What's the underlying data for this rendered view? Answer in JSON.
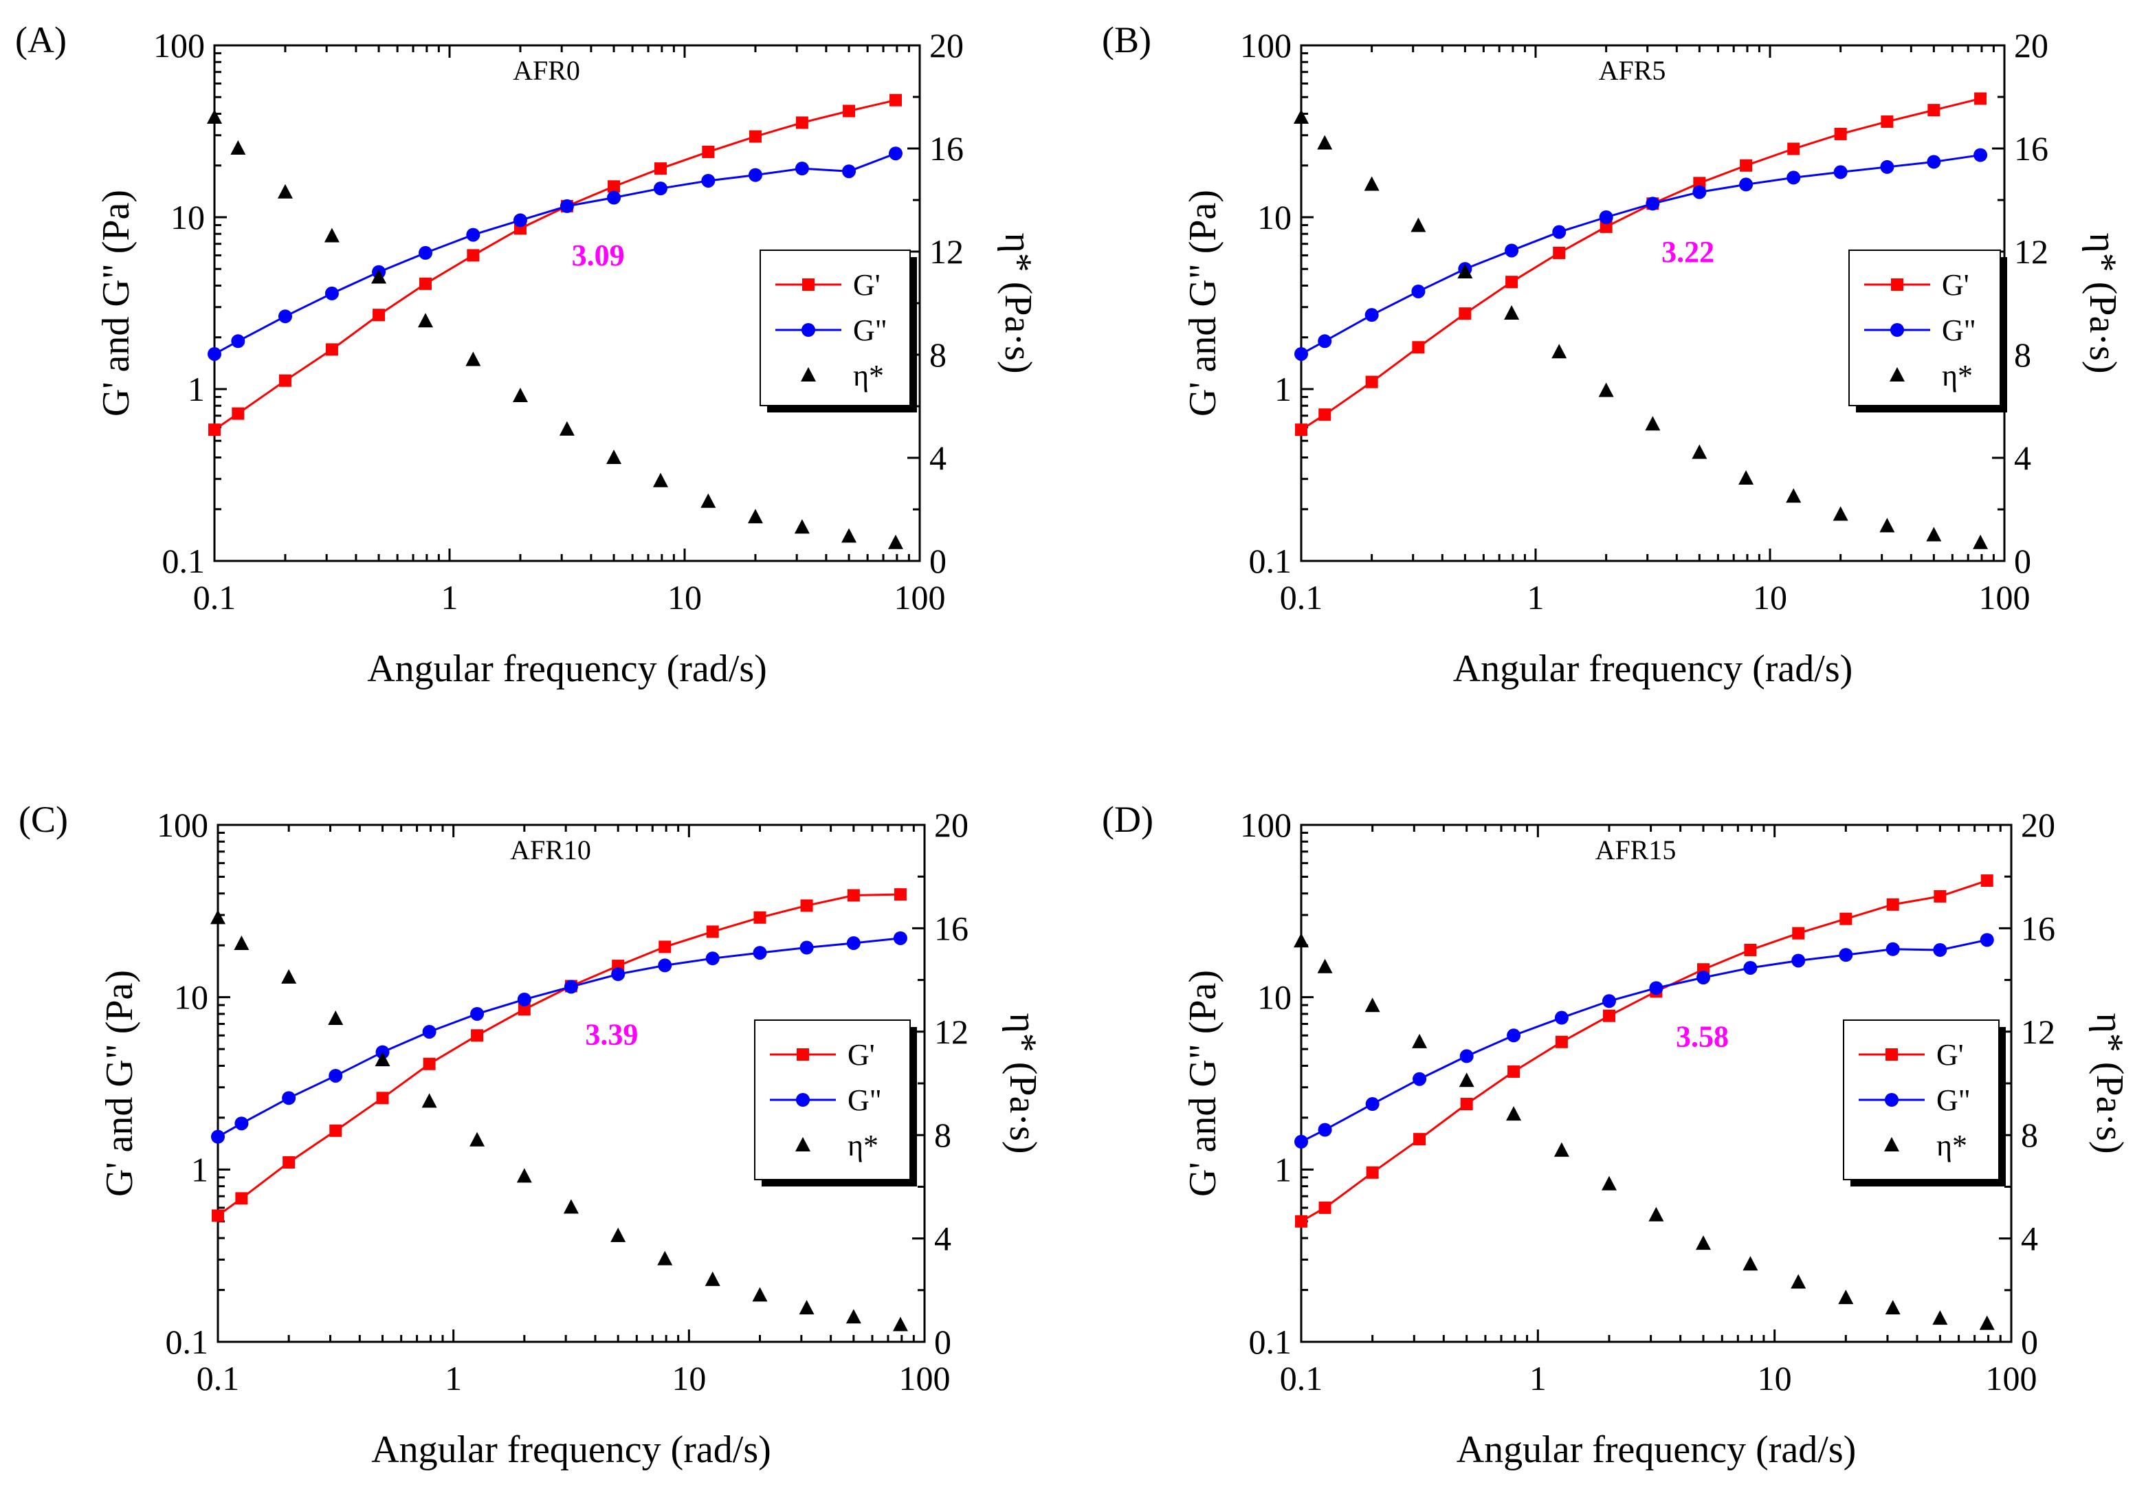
{
  "chart_data": [
    {
      "type": "scatter",
      "panel": "(A)",
      "title": "AFR0",
      "xlabel": "Angular frequency (rad/s)",
      "ylabel": "G' and G\" (Pa)",
      "y2label": "η* (Pa·s)",
      "xscale": "log",
      "xlim": [
        0.1,
        100
      ],
      "yscale": "log",
      "ylim": [
        0.1,
        100
      ],
      "y2lim": [
        0,
        20
      ],
      "x_ticks": [
        "0.1",
        "1",
        "10",
        "100"
      ],
      "y_ticks": [
        "0.1",
        "1",
        "10",
        "100"
      ],
      "y2_ticks": [
        "0",
        "4",
        "8",
        "12",
        "16",
        "20"
      ],
      "crossover_label": "3.09",
      "crossover": {
        "x": 3.09,
        "y": 11.5
      },
      "x": [
        0.1,
        0.126,
        0.2,
        0.316,
        0.5,
        0.79,
        1.26,
        2.0,
        3.16,
        5.0,
        7.9,
        12.6,
        20,
        31.6,
        50,
        79
      ],
      "series": [
        {
          "name": "G'",
          "axis": "left",
          "color": "#ff0000",
          "marker": "square",
          "line": true,
          "values": [
            0.58,
            0.72,
            1.12,
            1.7,
            2.7,
            4.1,
            6.0,
            8.6,
            11.6,
            15.1,
            19.2,
            24.0,
            29.5,
            35.5,
            41.5,
            48.0
          ]
        },
        {
          "name": "G\"",
          "axis": "left",
          "color": "#0000ff",
          "marker": "circle",
          "line": true,
          "values": [
            1.6,
            1.9,
            2.65,
            3.6,
            4.8,
            6.2,
            7.9,
            9.6,
            11.6,
            13.0,
            14.7,
            16.3,
            17.6,
            19.2,
            18.5,
            23.5
          ]
        },
        {
          "name": "η*",
          "axis": "right",
          "color": "#000000",
          "marker": "triangle",
          "line": false,
          "values": [
            17.2,
            16.0,
            14.3,
            12.6,
            11.0,
            9.3,
            7.8,
            6.4,
            5.1,
            4.0,
            3.1,
            2.3,
            1.7,
            1.3,
            0.95,
            0.7
          ]
        }
      ]
    },
    {
      "type": "scatter",
      "panel": "(B)",
      "title": "AFR5",
      "xlabel": "Angular frequency (rad/s)",
      "ylabel": "G' and G\" (Pa)",
      "y2label": "η* (Pa·s)",
      "xscale": "log",
      "xlim": [
        0.1,
        100
      ],
      "yscale": "log",
      "ylim": [
        0.1,
        100
      ],
      "y2lim": [
        0,
        20
      ],
      "x_ticks": [
        "0.1",
        "1",
        "10",
        "100"
      ],
      "y_ticks": [
        "0.1",
        "1",
        "10",
        "100"
      ],
      "y2_ticks": [
        "0",
        "4",
        "8",
        "12",
        "16",
        "20"
      ],
      "crossover_label": "3.22",
      "crossover": {
        "x": 3.22,
        "y": 12.0
      },
      "x": [
        0.1,
        0.126,
        0.2,
        0.316,
        0.5,
        0.79,
        1.26,
        2.0,
        3.16,
        5.0,
        7.9,
        12.6,
        20,
        31.6,
        50,
        79
      ],
      "series": [
        {
          "name": "G'",
          "axis": "left",
          "color": "#ff0000",
          "marker": "square",
          "line": true,
          "values": [
            0.58,
            0.71,
            1.1,
            1.75,
            2.75,
            4.2,
            6.2,
            8.8,
            12.0,
            15.8,
            20.0,
            25.0,
            30.5,
            36.0,
            42.0,
            49.0
          ]
        },
        {
          "name": "G\"",
          "axis": "left",
          "color": "#0000ff",
          "marker": "circle",
          "line": true,
          "values": [
            1.6,
            1.9,
            2.7,
            3.7,
            5.0,
            6.4,
            8.2,
            10.0,
            12.0,
            14.0,
            15.5,
            17.0,
            18.3,
            19.6,
            21.0,
            23.0
          ]
        },
        {
          "name": "η*",
          "axis": "right",
          "color": "#000000",
          "marker": "triangle",
          "line": false,
          "values": [
            17.2,
            16.2,
            14.6,
            13.0,
            11.2,
            9.6,
            8.1,
            6.6,
            5.3,
            4.2,
            3.2,
            2.5,
            1.8,
            1.35,
            1.0,
            0.7
          ]
        }
      ]
    },
    {
      "type": "scatter",
      "panel": "(C)",
      "title": "AFR10",
      "xlabel": "Angular frequency (rad/s)",
      "ylabel": "G' and G\" (Pa)",
      "y2label": "η* (Pa·s)",
      "xscale": "log",
      "xlim": [
        0.1,
        100
      ],
      "yscale": "log",
      "ylim": [
        0.1,
        100
      ],
      "y2lim": [
        0,
        20
      ],
      "x_ticks": [
        "0.1",
        "1",
        "10",
        "100"
      ],
      "y_ticks": [
        "0.1",
        "1",
        "10",
        "100"
      ],
      "y2_ticks": [
        "0",
        "4",
        "8",
        "12",
        "16",
        "20"
      ],
      "crossover_label": "3.39",
      "crossover": {
        "x": 3.39,
        "y": 11.6
      },
      "x": [
        0.1,
        0.126,
        0.2,
        0.316,
        0.5,
        0.79,
        1.26,
        2.0,
        3.16,
        5.0,
        7.9,
        12.6,
        20,
        31.6,
        50,
        79
      ],
      "series": [
        {
          "name": "G'",
          "axis": "left",
          "color": "#ff0000",
          "marker": "square",
          "line": true,
          "values": [
            0.54,
            0.68,
            1.1,
            1.68,
            2.6,
            4.1,
            6.0,
            8.5,
            11.6,
            15.2,
            19.6,
            24.0,
            29.0,
            34.0,
            39.0,
            39.5
          ]
        },
        {
          "name": "G\"",
          "axis": "left",
          "color": "#0000ff",
          "marker": "circle",
          "line": true,
          "values": [
            1.55,
            1.85,
            2.6,
            3.5,
            4.8,
            6.3,
            8.0,
            9.7,
            11.5,
            13.6,
            15.3,
            16.8,
            18.1,
            19.4,
            20.6,
            22.0
          ]
        },
        {
          "name": "η*",
          "axis": "right",
          "color": "#000000",
          "marker": "triangle",
          "line": false,
          "values": [
            16.4,
            15.4,
            14.1,
            12.5,
            10.9,
            9.3,
            7.8,
            6.4,
            5.2,
            4.1,
            3.2,
            2.4,
            1.8,
            1.3,
            0.95,
            0.65
          ]
        }
      ]
    },
    {
      "type": "scatter",
      "panel": "(D)",
      "title": "AFR15",
      "xlabel": "Angular frequency (rad/s)",
      "ylabel": "G' and G\" (Pa)",
      "y2label": "η* (Pa·s)",
      "xscale": "log",
      "xlim": [
        0.1,
        100
      ],
      "yscale": "log",
      "ylim": [
        0.1,
        100
      ],
      "y2lim": [
        0,
        20
      ],
      "x_ticks": [
        "0.1",
        "1",
        "10",
        "100"
      ],
      "y_ticks": [
        "0.1",
        "1",
        "10",
        "100"
      ],
      "y2_ticks": [
        "0",
        "4",
        "8",
        "12",
        "16",
        "20"
      ],
      "crossover_label": "3.58",
      "crossover": {
        "x": 3.58,
        "y": 11.3
      },
      "x": [
        0.1,
        0.126,
        0.2,
        0.316,
        0.5,
        0.79,
        1.26,
        2.0,
        3.16,
        5.0,
        7.9,
        12.6,
        20,
        31.6,
        50,
        79
      ],
      "series": [
        {
          "name": "G'",
          "axis": "left",
          "color": "#ff0000",
          "marker": "square",
          "line": true,
          "values": [
            0.5,
            0.6,
            0.96,
            1.5,
            2.4,
            3.7,
            5.5,
            7.8,
            10.8,
            14.5,
            18.8,
            23.5,
            28.5,
            34.5,
            38.5,
            47.5
          ]
        },
        {
          "name": "G\"",
          "axis": "left",
          "color": "#0000ff",
          "marker": "circle",
          "line": true,
          "values": [
            1.45,
            1.7,
            2.4,
            3.35,
            4.55,
            6.0,
            7.6,
            9.5,
            11.3,
            13.0,
            14.8,
            16.3,
            17.6,
            19.0,
            18.8,
            21.5
          ]
        },
        {
          "name": "η*",
          "axis": "right",
          "color": "#000000",
          "marker": "triangle",
          "line": false,
          "values": [
            15.5,
            14.5,
            13.0,
            11.6,
            10.1,
            8.8,
            7.4,
            6.1,
            4.9,
            3.8,
            3.0,
            2.3,
            1.7,
            1.3,
            0.9,
            0.7
          ]
        }
      ]
    }
  ]
}
